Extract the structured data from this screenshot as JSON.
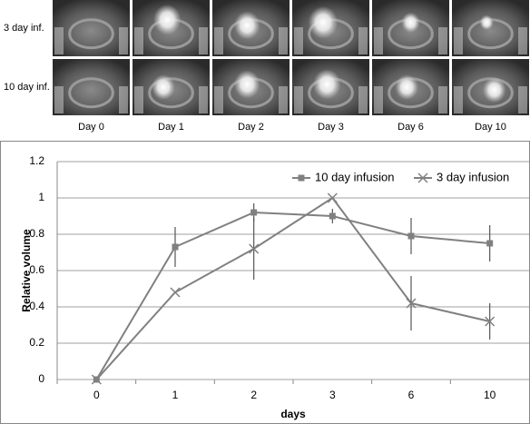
{
  "image_grid": {
    "row_labels": [
      "3 day inf.",
      "10 day inf."
    ],
    "column_labels": [
      "Day 0",
      "Day 1",
      "Day 2",
      "Day 3",
      "Day 6",
      "Day 10"
    ]
  },
  "chart_data": {
    "type": "line",
    "x_label": "days",
    "y_label": "Relative volume",
    "categories": [
      "0",
      "1",
      "2",
      "3",
      "6",
      "10"
    ],
    "series": [
      {
        "name": "10 day infusion",
        "color": "#808080",
        "marker": "square",
        "values": [
          0,
          0.73,
          0.92,
          0.9,
          0.79,
          0.75
        ],
        "errors": [
          null,
          0.11,
          0.05,
          0.04,
          0.1,
          0.1
        ]
      },
      {
        "name": "3 day infusion",
        "color": "#808080",
        "marker": "x",
        "values": [
          0,
          0.48,
          0.72,
          1.0,
          0.42,
          0.32
        ],
        "errors": [
          null,
          null,
          0.17,
          null,
          0.15,
          0.1
        ]
      }
    ],
    "ylim": [
      0,
      1.2
    ],
    "yticks": [
      0,
      0.2,
      0.4,
      0.6,
      0.8,
      1,
      1.2
    ],
    "grid": true,
    "legend": "top-right"
  }
}
